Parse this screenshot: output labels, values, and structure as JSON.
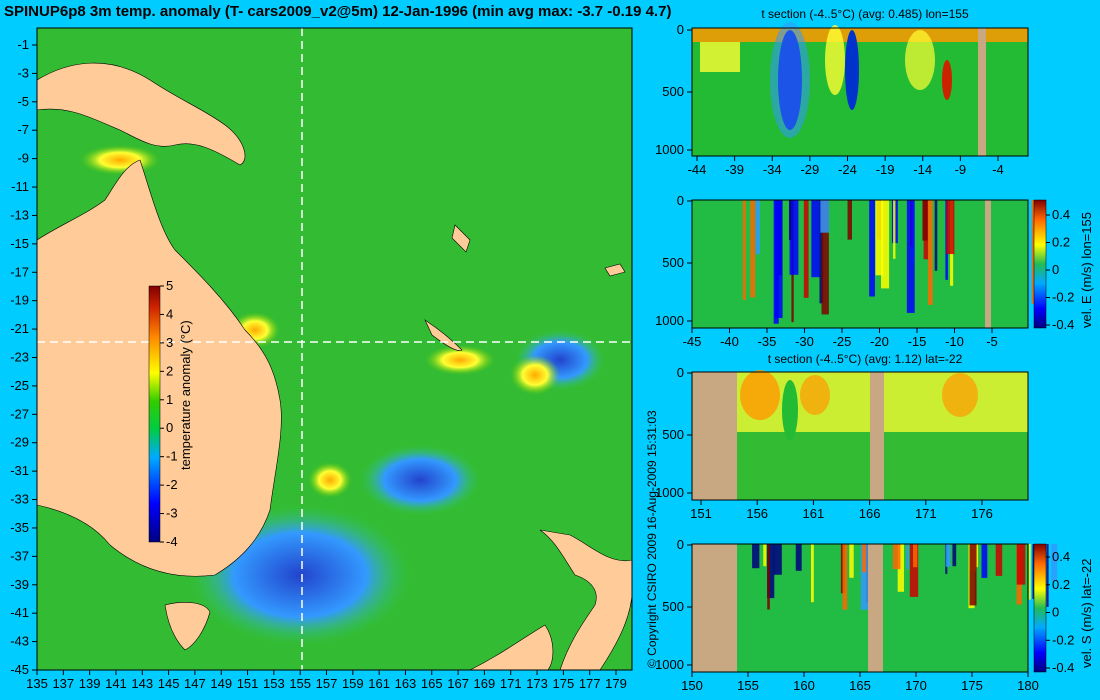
{
  "title": "SPINUP6p8 3m temp. anomaly (T- cars2009_v2@5m) 12-Jan-1996 (min avg max: -3.7 -0.19 4.7)",
  "copyright": "© Copyright CSIRO 2009   16-Aug-2009 15:31:03",
  "colors": {
    "background": "#00ccff",
    "land": "#ffcc99",
    "section_land": "#c8a882",
    "crosshair": "#ffffff"
  },
  "chart_data": [
    {
      "type": "heatmap",
      "name": "map",
      "title": "",
      "xlabel": "",
      "ylabel": "",
      "x_ticks": [
        "135",
        "137",
        "139",
        "141",
        "143",
        "145",
        "147",
        "149",
        "151",
        "153",
        "155",
        "157",
        "159",
        "161",
        "163",
        "165",
        "167",
        "169",
        "171",
        "173",
        "175",
        "177",
        "179"
      ],
      "y_ticks": [
        "-1",
        "-3",
        "-5",
        "-7",
        "-9",
        "-11",
        "-13",
        "-15",
        "-17",
        "-19",
        "-21",
        "-23",
        "-25",
        "-27",
        "-29",
        "-31",
        "-33",
        "-35",
        "-37",
        "-39",
        "-41",
        "-43",
        "-45"
      ],
      "xlim": [
        134,
        180
      ],
      "ylim": [
        -45,
        0
      ],
      "crosshair": {
        "lon": 155,
        "lat": -22
      },
      "colorbar": {
        "label": "temperature anomaly (°C)",
        "ticks": [
          "5",
          "4",
          "3",
          "2",
          "1",
          "0",
          "-1",
          "-2",
          "-3",
          "-4"
        ],
        "range": [
          -4,
          5
        ]
      }
    },
    {
      "type": "heatmap",
      "name": "t-section-lon155",
      "title": "t section (-4..5°C) (avg: 0.485) lon=155",
      "x_ticks": [
        "-44",
        "-39",
        "-34",
        "-29",
        "-24",
        "-19",
        "-14",
        "-9",
        "-4"
      ],
      "y_ticks": [
        "0",
        "500",
        "1000"
      ],
      "xlim": [
        -45,
        -1
      ],
      "ylim": [
        1050,
        0
      ]
    },
    {
      "type": "heatmap",
      "name": "u-section-lon155",
      "title": "",
      "x_ticks": [
        "-45",
        "-40",
        "-35",
        "-30",
        "-25",
        "-20",
        "-15",
        "-10",
        "-5"
      ],
      "y_ticks": [
        "0",
        "500",
        "1000"
      ],
      "xlim": [
        -45,
        -1
      ],
      "ylim": [
        1050,
        0
      ],
      "colorbar": {
        "label": "vel. E (m/s) lon=155",
        "ticks": [
          "0.4",
          "0.2",
          "0",
          "-0.2",
          "-0.4"
        ],
        "range": [
          -0.45,
          0.45
        ]
      }
    },
    {
      "type": "heatmap",
      "name": "t-section-lat-22",
      "title": "t section (-4..5°C) (avg: 1.12) lat=-22",
      "x_ticks": [
        "151",
        "156",
        "161",
        "166",
        "171",
        "176"
      ],
      "y_ticks": [
        "0",
        "500",
        "1000"
      ],
      "xlim": [
        150,
        180
      ],
      "ylim": [
        1050,
        0
      ]
    },
    {
      "type": "heatmap",
      "name": "v-section-lat-22",
      "title": "",
      "x_ticks": [
        "150",
        "155",
        "160",
        "165",
        "170",
        "175",
        "180"
      ],
      "y_ticks": [
        "0",
        "500",
        "1000"
      ],
      "xlim": [
        150,
        180
      ],
      "ylim": [
        1050,
        0
      ],
      "colorbar": {
        "label": "vel. S (m/s) lat=-22",
        "ticks": [
          "0.4",
          "0.2",
          "0",
          "-0.2",
          "-0.4"
        ],
        "range": [
          -0.45,
          0.45
        ]
      }
    }
  ]
}
